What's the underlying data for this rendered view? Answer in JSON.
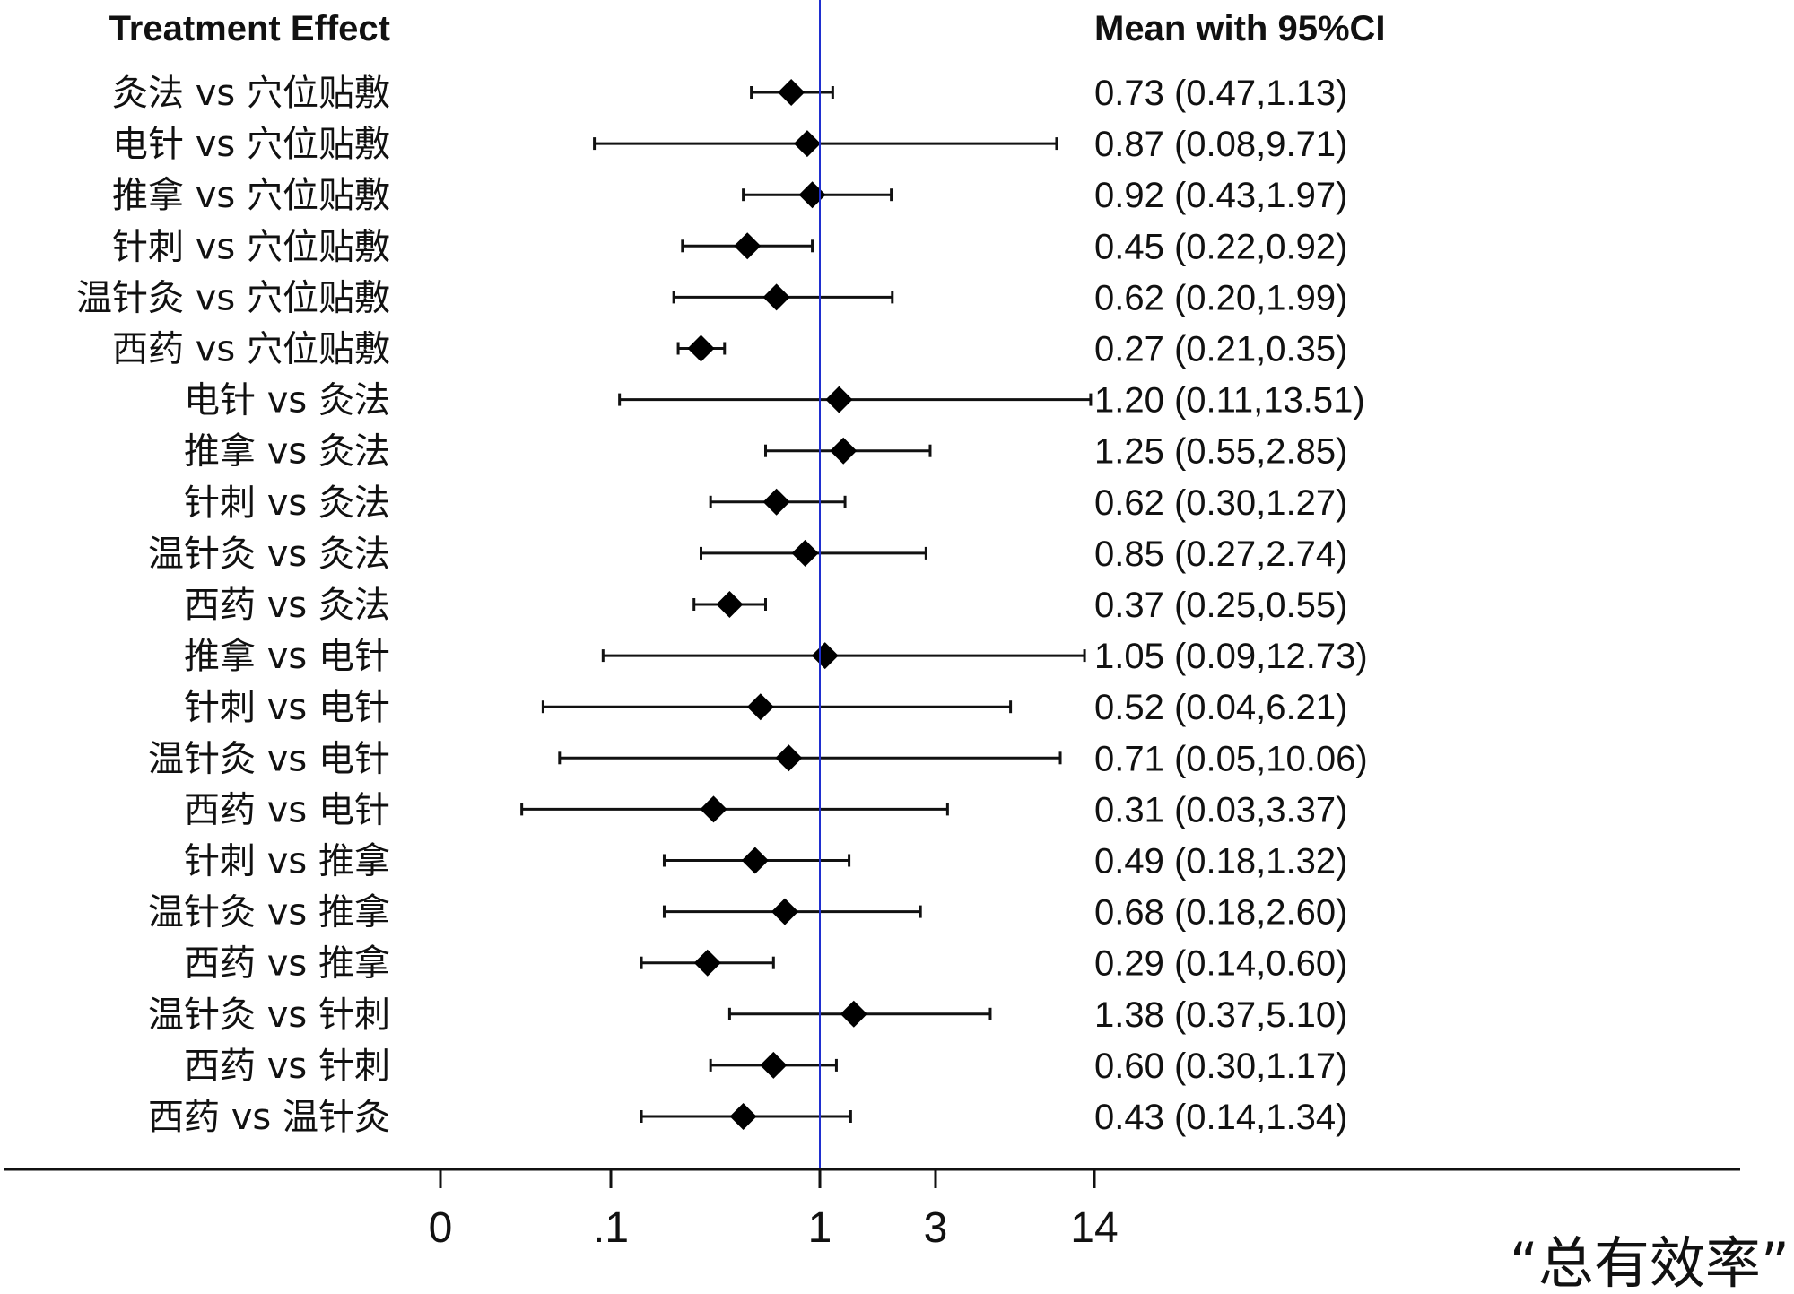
{
  "chart_data": {
    "type": "forest",
    "title": "",
    "caption": "“总有效率”",
    "left_header": "Treatment Effect",
    "right_header": "Mean with 95%CI",
    "reference_line": {
      "value": 1,
      "color": "#1f2fd0"
    },
    "x_scale": "log",
    "x_ticks": [
      {
        "value": 0.01,
        "label": "0"
      },
      {
        "value": 0.1,
        "label": ".1"
      },
      {
        "value": 1,
        "label": "1"
      },
      {
        "value": 3,
        "label": "3"
      },
      {
        "value": 14,
        "label": "14"
      }
    ],
    "rows": [
      {
        "label": "灸法 vs 穴位贴敷",
        "mean": 0.73,
        "lower": 0.47,
        "upper": 1.13,
        "text": "0.73 (0.47,1.13)"
      },
      {
        "label": "电针 vs 穴位贴敷",
        "mean": 0.87,
        "lower": 0.08,
        "upper": 9.71,
        "text": "0.87 (0.08,9.71)"
      },
      {
        "label": "推拿 vs 穴位贴敷",
        "mean": 0.92,
        "lower": 0.43,
        "upper": 1.97,
        "text": "0.92 (0.43,1.97)"
      },
      {
        "label": "针刺 vs 穴位贴敷",
        "mean": 0.45,
        "lower": 0.22,
        "upper": 0.92,
        "text": "0.45 (0.22,0.92)"
      },
      {
        "label": "温针灸 vs 穴位贴敷",
        "mean": 0.62,
        "lower": 0.2,
        "upper": 1.99,
        "text": "0.62 (0.20,1.99)"
      },
      {
        "label": "西药 vs 穴位贴敷",
        "mean": 0.27,
        "lower": 0.21,
        "upper": 0.35,
        "text": "0.27 (0.21,0.35)"
      },
      {
        "label": "电针 vs 灸法",
        "mean": 1.2,
        "lower": 0.11,
        "upper": 13.51,
        "text": "1.20 (0.11,13.51)"
      },
      {
        "label": "推拿 vs 灸法",
        "mean": 1.25,
        "lower": 0.55,
        "upper": 2.85,
        "text": "1.25 (0.55,2.85)"
      },
      {
        "label": "针刺 vs 灸法",
        "mean": 0.62,
        "lower": 0.3,
        "upper": 1.27,
        "text": "0.62 (0.30,1.27)"
      },
      {
        "label": "温针灸 vs 灸法",
        "mean": 0.85,
        "lower": 0.27,
        "upper": 2.74,
        "text": "0.85 (0.27,2.74)"
      },
      {
        "label": "西药 vs 灸法",
        "mean": 0.37,
        "lower": 0.25,
        "upper": 0.55,
        "text": "0.37 (0.25,0.55)"
      },
      {
        "label": "推拿 vs 电针",
        "mean": 1.05,
        "lower": 0.09,
        "upper": 12.73,
        "text": "1.05 (0.09,12.73)"
      },
      {
        "label": "针刺 vs 电针",
        "mean": 0.52,
        "lower": 0.04,
        "upper": 6.21,
        "text": "0.52 (0.04,6.21)"
      },
      {
        "label": "温针灸 vs 电针",
        "mean": 0.71,
        "lower": 0.05,
        "upper": 10.06,
        "text": "0.71 (0.05,10.06)"
      },
      {
        "label": "西药 vs 电针",
        "mean": 0.31,
        "lower": 0.03,
        "upper": 3.37,
        "text": "0.31 (0.03,3.37)"
      },
      {
        "label": "针刺 vs 推拿",
        "mean": 0.49,
        "lower": 0.18,
        "upper": 1.32,
        "text": "0.49 (0.18,1.32)"
      },
      {
        "label": "温针灸 vs 推拿",
        "mean": 0.68,
        "lower": 0.18,
        "upper": 2.6,
        "text": "0.68 (0.18,2.60)"
      },
      {
        "label": "西药 vs 推拿",
        "mean": 0.29,
        "lower": 0.14,
        "upper": 0.6,
        "text": "0.29 (0.14,0.60)"
      },
      {
        "label": "温针灸 vs 针刺",
        "mean": 1.38,
        "lower": 0.37,
        "upper": 5.1,
        "text": "1.38 (0.37,5.10)"
      },
      {
        "label": "西药 vs 针刺",
        "mean": 0.6,
        "lower": 0.3,
        "upper": 1.17,
        "text": "0.60 (0.30,1.17)"
      },
      {
        "label": "西药 vs 温针灸",
        "mean": 0.43,
        "lower": 0.14,
        "upper": 1.34,
        "text": "0.43 (0.14,1.34)"
      }
    ]
  }
}
